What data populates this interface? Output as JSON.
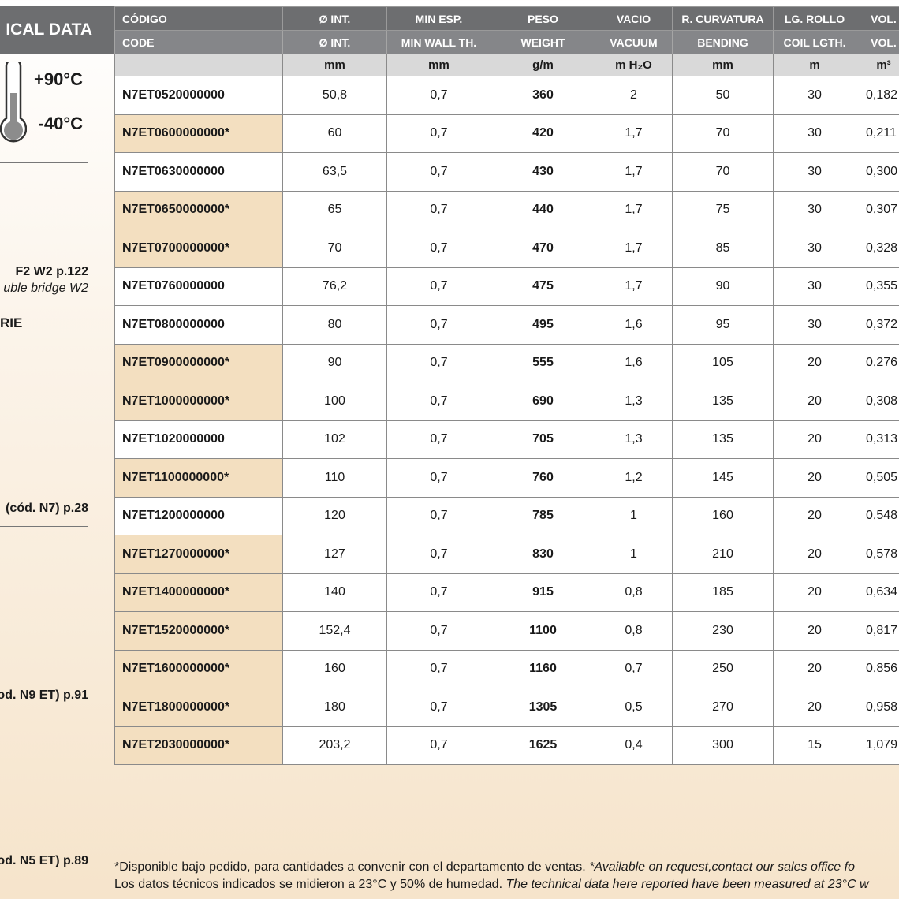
{
  "sidebar": {
    "title": "ICAL DATA",
    "temp_max": "+90°C",
    "temp_min": "-40°C",
    "ref_1": "F2 W2 p.122",
    "ref_1_note": "uble bridge W2",
    "section": "RIE",
    "ref_2": "(cód. N7) p.28",
    "ref_3": "od. N9 ET) p.91",
    "ref_4": "od. N5 ET) p.89"
  },
  "table": {
    "header_es": [
      "CÓDIGO",
      "Ø INT.",
      "MIN ESP.",
      "PESO",
      "VACIO",
      "R. CURVATURA",
      "LG. ROLLO",
      "VOL."
    ],
    "header_en": [
      "CODE",
      "Ø INT.",
      "MIN WALL TH.",
      "WEIGHT",
      "VACUUM",
      "BENDING",
      "COIL LGTH.",
      "VOL."
    ],
    "units": [
      "mm",
      "mm",
      "g/m",
      "m H₂O",
      "mm",
      "m",
      "m³"
    ],
    "rows": [
      [
        "N7ET0520000000",
        "50,8",
        "0,7",
        "360",
        "2",
        "50",
        "30",
        "0,182"
      ],
      [
        "N7ET0600000000*",
        "60",
        "0,7",
        "420",
        "1,7",
        "70",
        "30",
        "0,211"
      ],
      [
        "N7ET0630000000",
        "63,5",
        "0,7",
        "430",
        "1,7",
        "70",
        "30",
        "0,300"
      ],
      [
        "N7ET0650000000*",
        "65",
        "0,7",
        "440",
        "1,7",
        "75",
        "30",
        "0,307"
      ],
      [
        "N7ET0700000000*",
        "70",
        "0,7",
        "470",
        "1,7",
        "85",
        "30",
        "0,328"
      ],
      [
        "N7ET0760000000",
        "76,2",
        "0,7",
        "475",
        "1,7",
        "90",
        "30",
        "0,355"
      ],
      [
        "N7ET0800000000",
        "80",
        "0,7",
        "495",
        "1,6",
        "95",
        "30",
        "0,372"
      ],
      [
        "N7ET0900000000*",
        "90",
        "0,7",
        "555",
        "1,6",
        "105",
        "20",
        "0,276"
      ],
      [
        "N7ET1000000000*",
        "100",
        "0,7",
        "690",
        "1,3",
        "135",
        "20",
        "0,308"
      ],
      [
        "N7ET1020000000",
        "102",
        "0,7",
        "705",
        "1,3",
        "135",
        "20",
        "0,313"
      ],
      [
        "N7ET1100000000*",
        "110",
        "0,7",
        "760",
        "1,2",
        "145",
        "20",
        "0,505"
      ],
      [
        "N7ET1200000000",
        "120",
        "0,7",
        "785",
        "1",
        "160",
        "20",
        "0,548"
      ],
      [
        "N7ET1270000000*",
        "127",
        "0,7",
        "830",
        "1",
        "210",
        "20",
        "0,578"
      ],
      [
        "N7ET1400000000*",
        "140",
        "0,7",
        "915",
        "0,8",
        "185",
        "20",
        "0,634"
      ],
      [
        "N7ET1520000000*",
        "152,4",
        "0,7",
        "1100",
        "0,8",
        "230",
        "20",
        "0,817"
      ],
      [
        "N7ET1600000000*",
        "160",
        "0,7",
        "1160",
        "0,7",
        "250",
        "20",
        "0,856"
      ],
      [
        "N7ET1800000000*",
        "180",
        "0,7",
        "1305",
        "0,5",
        "270",
        "20",
        "0,958"
      ],
      [
        "N7ET2030000000*",
        "203,2",
        "0,7",
        "1625",
        "0,4",
        "300",
        "15",
        "1,079"
      ]
    ]
  },
  "footnote": {
    "line_1": "*Disponible bajo pedido, para cantidades a convenir con el departamento de ventas.",
    "line_1_en": "*Available on request,contact our sales office fo",
    "line_2": "Los datos técnicos indicados se midieron a 23°C y 50% de humedad.",
    "line_2_en": "The technical data here reported have been measured at 23°C w"
  }
}
